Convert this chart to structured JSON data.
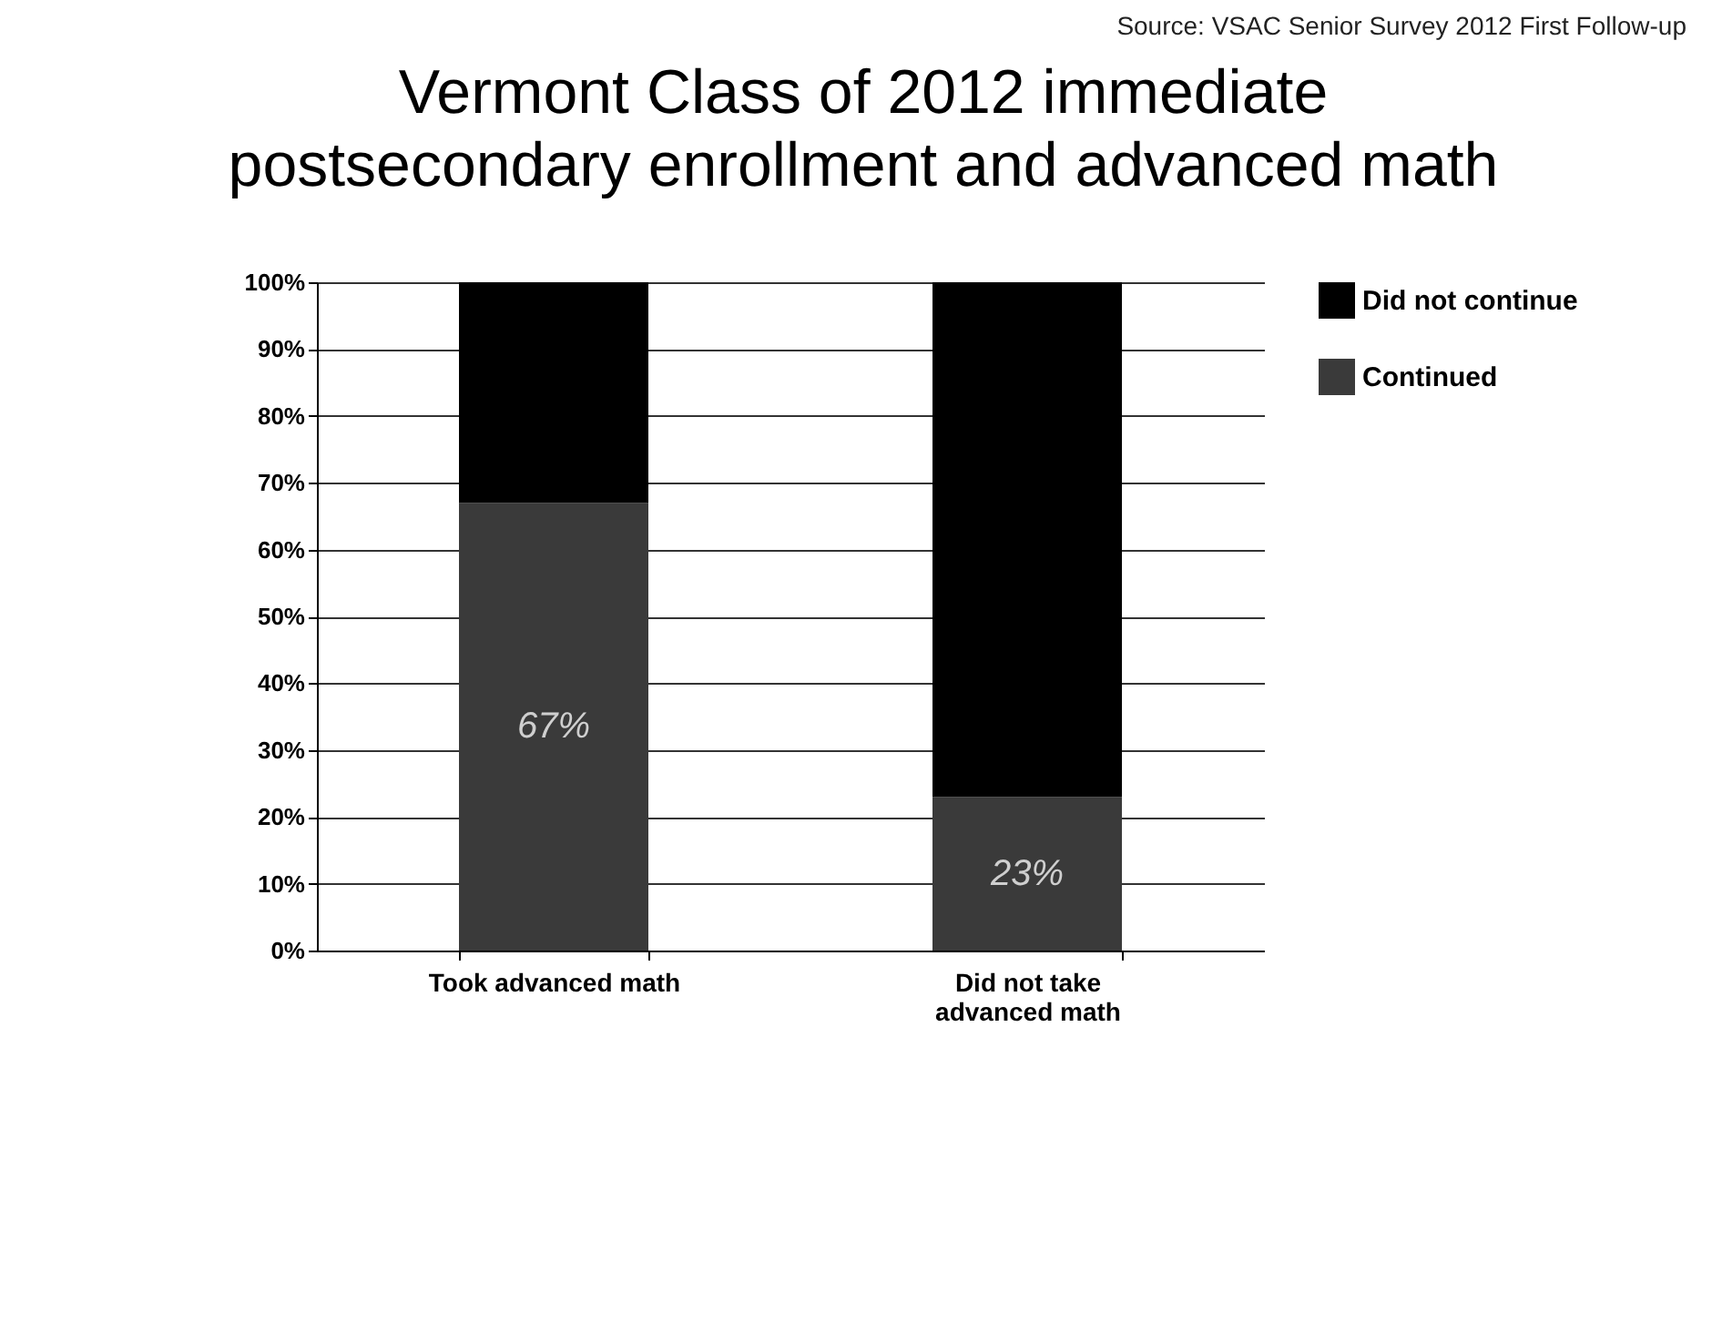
{
  "chart_data": {
    "type": "bar",
    "title": "Vermont Class of 2012 immediate postsecondary enrollment and advanced math",
    "annotations": [
      "Source: VSAC Senior Survey 2012 First Follow-up"
    ],
    "categories": [
      "Took advanced math",
      "Did not take advanced math"
    ],
    "stacked": true,
    "series": [
      {
        "name": "Continued",
        "color": "#3a3a3a",
        "values": [
          67,
          23
        ],
        "value_labels": [
          "67%",
          "23%"
        ]
      },
      {
        "name": "Did not continue",
        "color": "#000000",
        "values": [
          33,
          77
        ]
      }
    ],
    "ylim": [
      0,
      100
    ],
    "yticks": [
      {
        "value": 0,
        "label": "0%"
      },
      {
        "value": 10,
        "label": "10%"
      },
      {
        "value": 20,
        "label": "20%"
      },
      {
        "value": 30,
        "label": "30%"
      },
      {
        "value": 40,
        "label": "40%"
      },
      {
        "value": 50,
        "label": "50%"
      },
      {
        "value": 60,
        "label": "60%"
      },
      {
        "value": 70,
        "label": "70%"
      },
      {
        "value": 80,
        "label": "80%"
      },
      {
        "value": 90,
        "label": "90%"
      },
      {
        "value": 100,
        "label": "100%"
      }
    ],
    "grid": "y",
    "legend": "right"
  }
}
